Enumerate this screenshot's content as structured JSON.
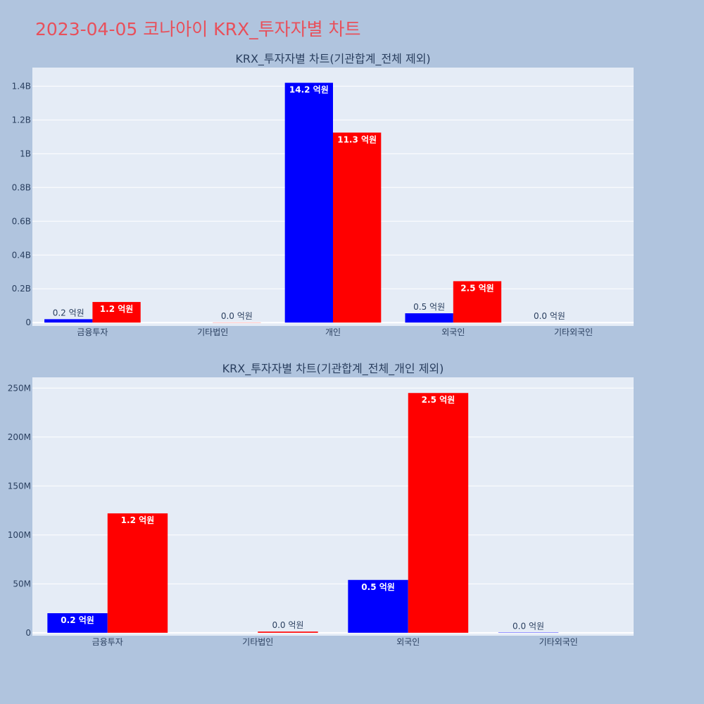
{
  "page_title": "2023-04-05 코나아이 KRX_투자자별 차트",
  "colors": {
    "series_a": "#0000ff",
    "series_b": "#ff0000",
    "plot_bg": "#e5ecf6",
    "page_bg": "#b0c4de",
    "title": "#e8505b"
  },
  "chart_data": [
    {
      "type": "bar",
      "title": "KRX_투자자별 차트(기관합계_전체 제외)",
      "categories": [
        "금융투자",
        "기타법인",
        "개인",
        "외국인",
        "기타외국인"
      ],
      "series": [
        {
          "values": [
            20000000,
            0,
            1420000000,
            55000000,
            0
          ],
          "labels": [
            "0.2 억원",
            "",
            "14.2 억원",
            "0.5 억원",
            "0.0 억원"
          ]
        },
        {
          "values": [
            122000000,
            1000000,
            1125000000,
            245000000,
            0
          ],
          "labels": [
            "1.2 억원",
            "0.0 억원",
            "11.3 억원",
            "2.5 억원",
            ""
          ]
        }
      ],
      "ylim": [
        -20000000,
        1510000000
      ],
      "yticks": [
        0,
        200000000,
        400000000,
        600000000,
        800000000,
        1000000000,
        1200000000,
        1400000000
      ],
      "ytick_labels": [
        "0",
        "0.2B",
        "0.4B",
        "0.6B",
        "0.8B",
        "1B",
        "1.2B",
        "1.4B"
      ],
      "grid": true,
      "legend": "none"
    },
    {
      "type": "bar",
      "title": "KRX_투자자별 차트(기관합계_전체_개인 제외)",
      "categories": [
        "금융투자",
        "기타법인",
        "외국인",
        "기타외국인"
      ],
      "series": [
        {
          "values": [
            20000000,
            0,
            54000000,
            300000
          ],
          "labels": [
            "0.2 억원",
            "",
            "0.5 억원",
            "0.0 억원"
          ]
        },
        {
          "values": [
            122000000,
            1200000,
            245000000,
            0
          ],
          "labels": [
            "1.2 억원",
            "0.0 억원",
            "2.5 억원",
            ""
          ]
        }
      ],
      "ylim": [
        -3000000,
        261000000
      ],
      "yticks": [
        0,
        50000000,
        100000000,
        150000000,
        200000000,
        250000000
      ],
      "ytick_labels": [
        "0",
        "50M",
        "100M",
        "150M",
        "200M",
        "250M"
      ],
      "grid": true,
      "legend": "none"
    }
  ]
}
